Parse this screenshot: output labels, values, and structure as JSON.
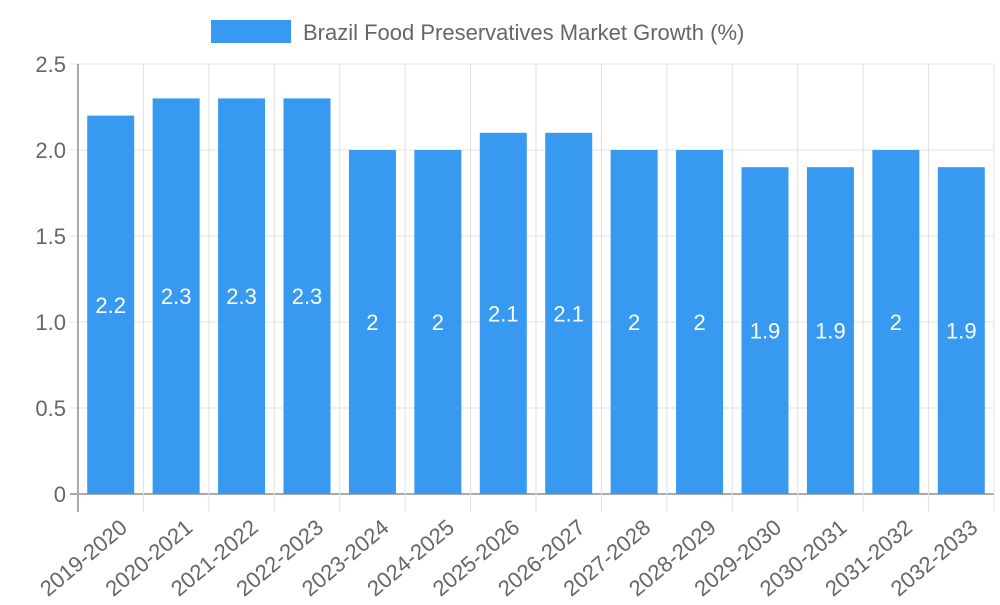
{
  "chart_data": {
    "type": "bar",
    "title": "",
    "legend": {
      "label": "Brazil Food Preservatives Market Growth (%)",
      "position": "top"
    },
    "categories": [
      "2019-2020",
      "2020-2021",
      "2021-2022",
      "2022-2023",
      "2023-2024",
      "2024-2025",
      "2025-2026",
      "2026-2027",
      "2027-2028",
      "2028-2029",
      "2029-2030",
      "2030-2031",
      "2031-2032",
      "2032-2033"
    ],
    "values": [
      2.2,
      2.3,
      2.3,
      2.3,
      2,
      2,
      2.1,
      2.1,
      2,
      2,
      1.9,
      1.9,
      2,
      1.9
    ],
    "ylim": [
      0,
      2.5
    ],
    "yticks": [
      "0",
      "0.5",
      "1.0",
      "1.5",
      "2.0",
      "2.5"
    ],
    "xlabel": "",
    "ylabel": "",
    "grid": true,
    "colors": {
      "bar": "#379af0",
      "label": "#ffffff",
      "axis_text": "#666666",
      "grid": "#e0e0e0"
    }
  }
}
